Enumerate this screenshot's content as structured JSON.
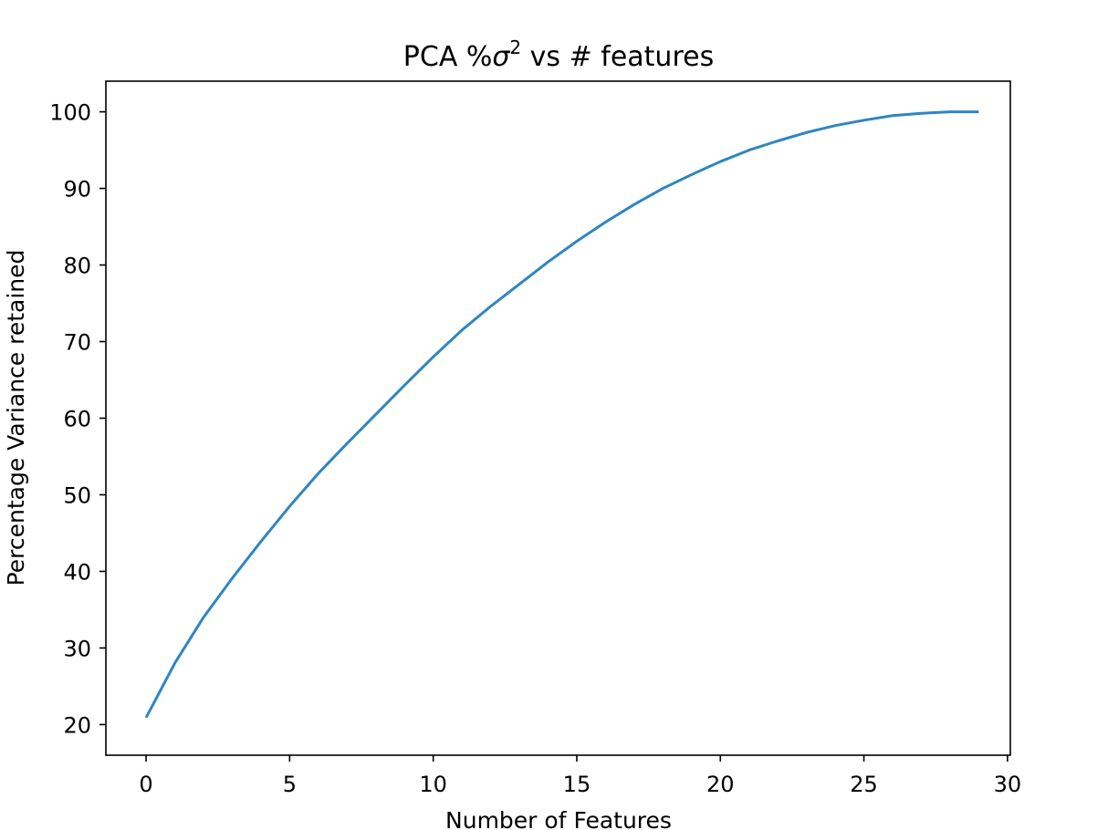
{
  "chart_data": {
    "type": "line",
    "title_prefix": "PCA %",
    "title_sigma": "σ",
    "title_exponent": "2",
    "title_suffix": " vs # features",
    "xlabel": "Number of Features",
    "ylabel": "Percentage Variance retained",
    "xlim": [
      -1.4,
      30.1
    ],
    "ylim": [
      16,
      104
    ],
    "xticks": [
      0,
      5,
      10,
      15,
      20,
      25,
      30
    ],
    "yticks": [
      20,
      30,
      40,
      50,
      60,
      70,
      80,
      90,
      100
    ],
    "grid": false,
    "series": [
      {
        "color": "#2e86c1",
        "x": [
          0,
          1,
          2,
          3,
          4,
          5,
          6,
          7,
          8,
          9,
          10,
          11,
          12,
          13,
          14,
          15,
          16,
          17,
          18,
          19,
          20,
          21,
          22,
          23,
          24,
          25,
          26,
          27,
          28,
          29
        ],
        "y": [
          20.9,
          28.0,
          34.0,
          39.1,
          43.9,
          48.5,
          52.8,
          56.7,
          60.5,
          64.3,
          68.0,
          71.5,
          74.6,
          77.5,
          80.4,
          83.1,
          85.6,
          87.9,
          90.0,
          91.8,
          93.5,
          95.0,
          96.2,
          97.3,
          98.2,
          98.9,
          99.5,
          99.8,
          100.0,
          100.0
        ]
      }
    ]
  }
}
